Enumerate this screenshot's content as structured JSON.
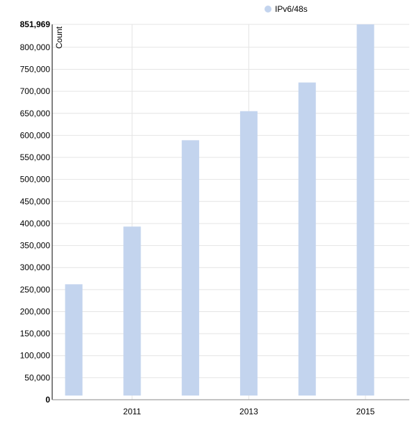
{
  "chart_data": {
    "type": "bar",
    "title": "",
    "xlabel": "",
    "ylabel": "Count",
    "x": [
      2010,
      2011,
      2012,
      2013,
      2014,
      2015
    ],
    "x_tick_labels": [
      "2011",
      "2013",
      "2015"
    ],
    "series": [
      {
        "name": "IPv6/48s",
        "color": "#c3d4ee",
        "values": [
          262000,
          393000,
          589000,
          655000,
          720000,
          851969
        ]
      }
    ],
    "ylim": [
      0,
      851969
    ],
    "y_ticks": [
      0,
      50000,
      100000,
      150000,
      200000,
      250000,
      300000,
      350000,
      400000,
      450000,
      500000,
      550000,
      600000,
      650000,
      700000,
      750000,
      800000,
      851969
    ],
    "y_tick_labels": [
      "0",
      "50,000",
      "100,000",
      "150,000",
      "200,000",
      "250,000",
      "300,000",
      "350,000",
      "400,000",
      "450,000",
      "500,000",
      "550,000",
      "600,000",
      "650,000",
      "700,000",
      "750,000",
      "800,000",
      "851,969"
    ],
    "grid": true,
    "legend": "top-center"
  }
}
